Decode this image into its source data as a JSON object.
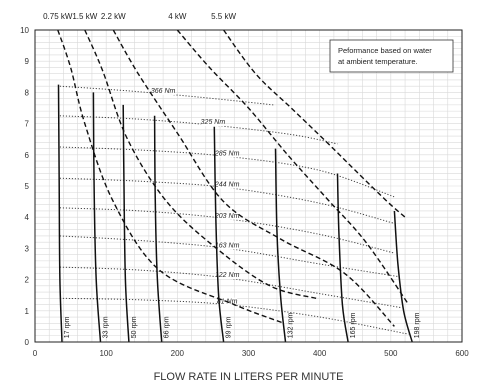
{
  "chart_data": {
    "type": "line",
    "title": "",
    "xlabel": "FLOW RATE IN LITERS PER MINUTE",
    "ylabel": "",
    "xlim": [
      0,
      600
    ],
    "ylim": [
      0,
      10
    ],
    "x_ticks": [
      "0",
      "100",
      "200",
      "300",
      "400",
      "500",
      "600"
    ],
    "y_ticks": [
      "0",
      "1",
      "2",
      "3",
      "4",
      "5",
      "6",
      "7",
      "8",
      "9",
      "10"
    ],
    "grid": true,
    "annotation": [
      "Peformance based on water",
      "at ambient temperature."
    ],
    "power_curves": [
      {
        "label": "0.75 kW",
        "x": [
          32,
          50,
          70,
          110,
          175,
          280,
          350
        ],
        "y": [
          10,
          8.8,
          7.0,
          4.5,
          2.3,
          1.2,
          0.6
        ]
      },
      {
        "label": "1.5 kW",
        "x": [
          70,
          95,
          130,
          185,
          255,
          330,
          395
        ],
        "y": [
          10,
          8.7,
          6.5,
          4.5,
          3.0,
          1.8,
          1.4
        ]
      },
      {
        "label": "2.2 kW",
        "x": [
          110,
          145,
          200,
          265,
          345,
          435,
          505
        ],
        "y": [
          10,
          8.6,
          6.7,
          4.5,
          3.3,
          2.2,
          0.5
        ]
      },
      {
        "label": "4 kW",
        "x": [
          200,
          245,
          300,
          355,
          410,
          465,
          525
        ],
        "y": [
          10,
          8.8,
          7.5,
          6.0,
          4.6,
          3.2,
          1.2
        ]
      },
      {
        "label": "5.5 kW",
        "x": [
          265,
          310,
          360,
          410,
          450,
          495,
          520
        ],
        "y": [
          10,
          8.6,
          7.5,
          6.4,
          5.5,
          4.5,
          4.0
        ]
      }
    ],
    "torque_curves": [
      {
        "label": "366 Nm",
        "x": [
          35,
          130,
          230,
          335
        ],
        "y": [
          8.2,
          8.05,
          7.85,
          7.6
        ]
      },
      {
        "label": "325 Nm",
        "x": [
          35,
          140,
          250,
          360,
          425
        ],
        "y": [
          7.25,
          7.15,
          6.95,
          6.65,
          6.35
        ]
      },
      {
        "label": "285 Nm",
        "x": [
          35,
          150,
          270,
          400,
          505
        ],
        "y": [
          6.25,
          6.15,
          5.95,
          5.5,
          4.65
        ]
      },
      {
        "label": "244 Nm",
        "x": [
          35,
          150,
          270,
          400,
          505
        ],
        "y": [
          5.25,
          5.15,
          4.95,
          4.45,
          3.8
        ]
      },
      {
        "label": "203 Nm",
        "x": [
          35,
          150,
          270,
          400,
          505
        ],
        "y": [
          4.3,
          4.2,
          3.95,
          3.45,
          2.85
        ]
      },
      {
        "label": "163 Nm",
        "x": [
          35,
          150,
          270,
          400,
          510
        ],
        "y": [
          3.4,
          3.25,
          3.0,
          2.5,
          2.1
        ]
      },
      {
        "label": "122 Nm",
        "x": [
          35,
          150,
          270,
          400,
          515
        ],
        "y": [
          2.4,
          2.3,
          2.05,
          1.55,
          1.1
        ]
      },
      {
        "label": "81 Nm",
        "x": [
          35,
          150,
          270,
          400,
          525
        ],
        "y": [
          1.4,
          1.35,
          1.2,
          0.8,
          0.25
        ]
      }
    ],
    "speed_curves": [
      {
        "label": "17 rpm",
        "x": [
          33,
          34,
          35,
          38
        ],
        "y": [
          8.25,
          5.0,
          2.0,
          0
        ]
      },
      {
        "label": "33 rpm",
        "x": [
          82,
          83,
          86,
          92
        ],
        "y": [
          8.0,
          5.0,
          2.0,
          0
        ]
      },
      {
        "label": "50 rpm",
        "x": [
          124,
          125,
          127,
          132
        ],
        "y": [
          7.6,
          5.0,
          2.0,
          0
        ]
      },
      {
        "label": "66 rpm",
        "x": [
          168,
          169,
          172,
          178
        ],
        "y": [
          7.25,
          4.5,
          2.0,
          0
        ]
      },
      {
        "label": "99 rpm",
        "x": [
          252,
          254,
          258,
          265
        ],
        "y": [
          6.9,
          4.0,
          1.5,
          0
        ]
      },
      {
        "label": "132 rpm",
        "x": [
          338,
          340,
          345,
          352
        ],
        "y": [
          6.2,
          3.5,
          1.5,
          0
        ]
      },
      {
        "label": "165 rpm",
        "x": [
          425,
          427,
          432,
          440
        ],
        "y": [
          5.4,
          3.5,
          1.2,
          0
        ]
      },
      {
        "label": "198 rpm",
        "x": [
          505,
          510,
          518,
          530
        ],
        "y": [
          4.2,
          2.5,
          1.0,
          0
        ]
      }
    ]
  }
}
